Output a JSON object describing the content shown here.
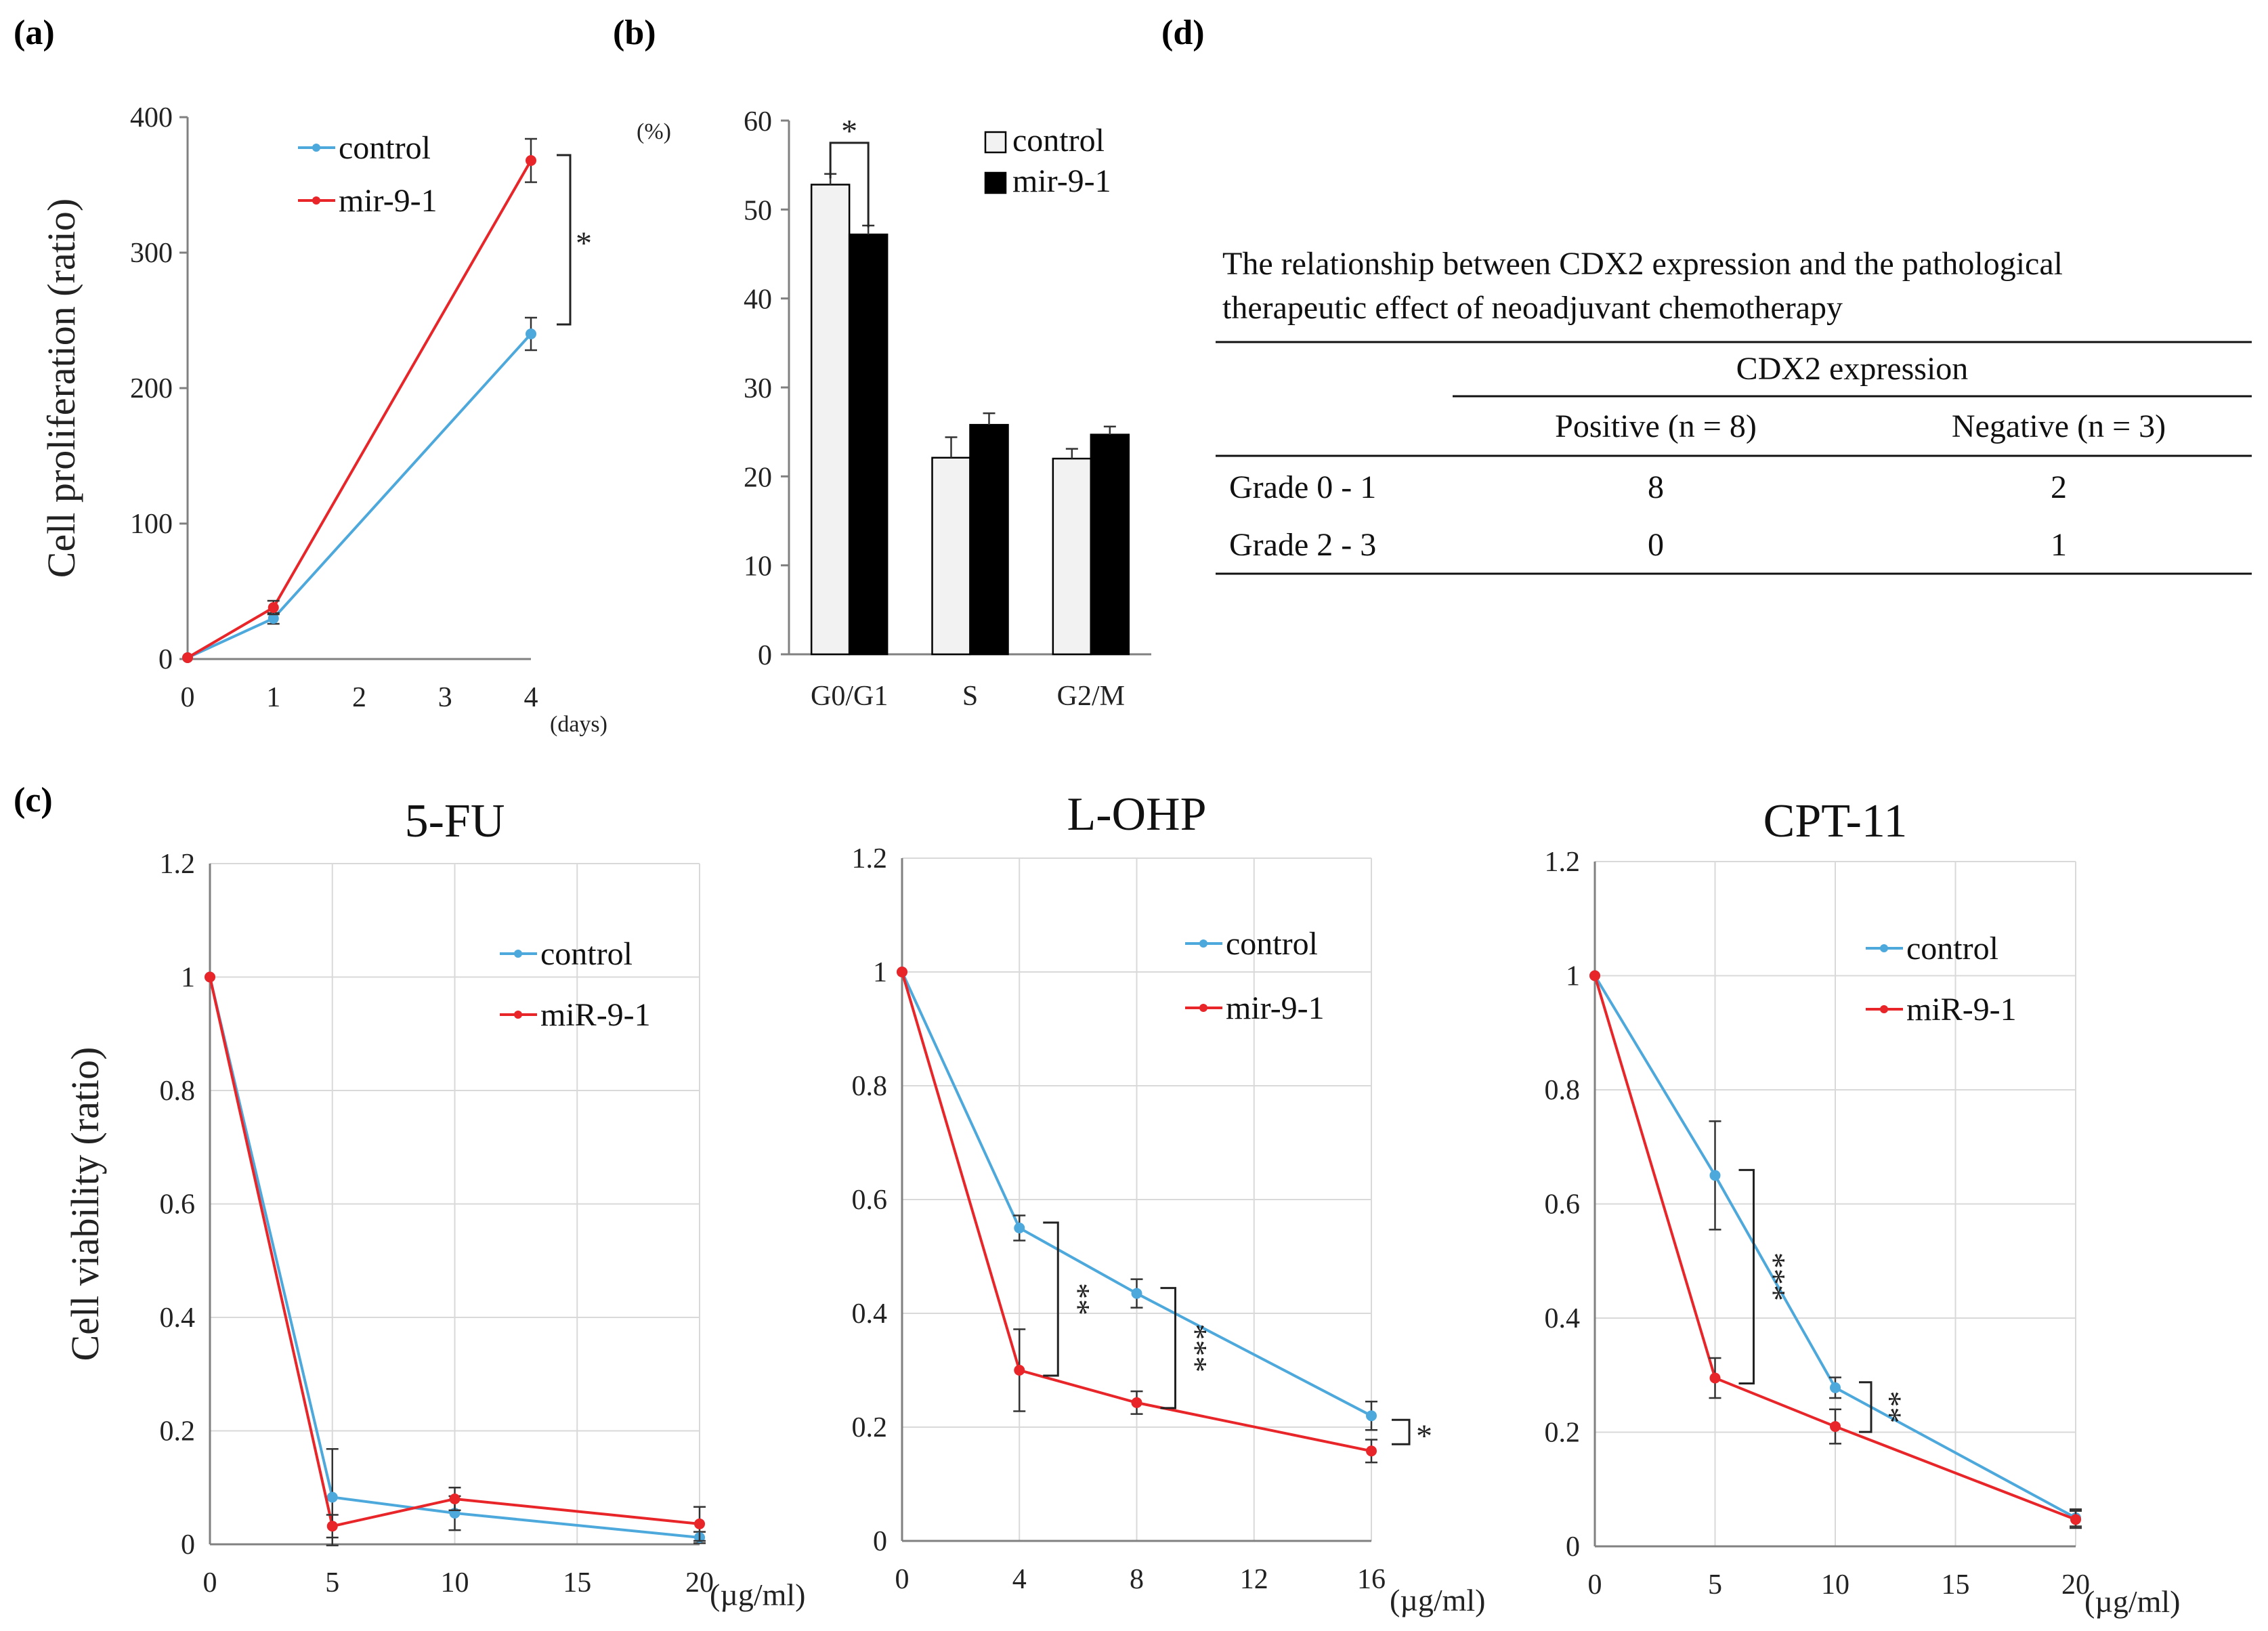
{
  "panel_labels": {
    "a": "(a)",
    "b": "(b)",
    "c": "(c)",
    "d": "(d)"
  },
  "colors": {
    "control": "#4da8dc",
    "mir": "#e8262a",
    "mir_5fu": "#f07a3a",
    "axis": "#808080",
    "grid": "#d9d9d9"
  },
  "chart_data": [
    {
      "id": "a",
      "type": "line",
      "title": "",
      "xlabel": "",
      "x_unit": "(days)",
      "ylabel": "Cell proliferation (ratio)",
      "xlim": [
        0,
        4
      ],
      "ylim": [
        0,
        400
      ],
      "x_ticks": [
        "0",
        "1",
        "2",
        "3",
        "4"
      ],
      "y_ticks": [
        "0",
        "100",
        "200",
        "300",
        "400"
      ],
      "grid": false,
      "legend_position": "top-center",
      "series": [
        {
          "name": "control",
          "x": [
            0,
            1,
            4
          ],
          "values": [
            1,
            30,
            240
          ],
          "errors": [
            0,
            4,
            12
          ]
        },
        {
          "name": "mir-9-1",
          "x": [
            0,
            1,
            4
          ],
          "values": [
            1,
            38,
            368
          ],
          "errors": [
            0,
            5,
            16
          ]
        }
      ],
      "annotations": [
        {
          "text": "*",
          "x": 4,
          "between": [
            240,
            368
          ]
        }
      ]
    },
    {
      "id": "b",
      "type": "bar",
      "title": "",
      "y_unit": "(%)",
      "ylim": [
        0,
        60
      ],
      "categories": [
        "G0/G1",
        "S",
        "G2/M"
      ],
      "y_ticks": [
        "0",
        "10",
        "20",
        "30",
        "40",
        "50",
        "60"
      ],
      "grid": false,
      "legend_position": "top-right",
      "series": [
        {
          "name": "control",
          "values": [
            52.8,
            22.1,
            22.0
          ],
          "errors": [
            1.2,
            2.3,
            1.1
          ]
        },
        {
          "name": "mir-9-1",
          "values": [
            47.2,
            25.8,
            24.7
          ],
          "errors": [
            1.0,
            1.3,
            0.9
          ]
        }
      ],
      "annotations": [
        {
          "text": "*",
          "category": "G0/G1"
        }
      ]
    },
    {
      "id": "c1",
      "type": "line",
      "title": "5-FU",
      "ylabel": "Cell viability (ratio)",
      "x_unit": "(µg/ml)",
      "xlim": [
        0,
        20
      ],
      "ylim": [
        0,
        1.2
      ],
      "x_ticks": [
        "0",
        "5",
        "10",
        "15",
        "20"
      ],
      "y_ticks": [
        "0",
        "0.2",
        "0.4",
        "0.6",
        "0.8",
        "1",
        "1.2"
      ],
      "grid": true,
      "legend_position": "top-right",
      "series": [
        {
          "name": "control",
          "x": [
            0,
            5,
            10,
            20
          ],
          "values": [
            1,
            0.083,
            0.055,
            0.012
          ],
          "errors": [
            0,
            0.085,
            0.03,
            0.01
          ]
        },
        {
          "name": "miR-9-1",
          "x": [
            0,
            5,
            10,
            20
          ],
          "values": [
            1,
            0.032,
            0.08,
            0.036
          ],
          "errors": [
            0,
            0.02,
            0.02,
            0.03
          ]
        }
      ],
      "annotations": []
    },
    {
      "id": "c2",
      "type": "line",
      "title": "L-OHP",
      "x_unit": "(µg/ml)",
      "xlim": [
        0,
        16
      ],
      "ylim": [
        0,
        1.2
      ],
      "x_ticks": [
        "0",
        "4",
        "8",
        "12",
        "16"
      ],
      "y_ticks": [
        "0",
        "0.2",
        "0.4",
        "0.6",
        "0.8",
        "1",
        "1.2"
      ],
      "grid": true,
      "legend_position": "top-right",
      "series": [
        {
          "name": "control",
          "x": [
            0,
            4,
            8,
            16
          ],
          "values": [
            1,
            0.55,
            0.435,
            0.22
          ],
          "errors": [
            0,
            0.022,
            0.025,
            0.025
          ]
        },
        {
          "name": "mir-9-1",
          "x": [
            0,
            4,
            8,
            16
          ],
          "values": [
            1,
            0.3,
            0.243,
            0.158
          ],
          "errors": [
            0,
            0.072,
            0.02,
            0.02
          ]
        }
      ],
      "annotations": [
        {
          "text": "**",
          "x": 4
        },
        {
          "text": "***",
          "x": 8
        },
        {
          "text": "*",
          "x": 16
        }
      ]
    },
    {
      "id": "c3",
      "type": "line",
      "title": "CPT-11",
      "x_unit": "(µg/ml)",
      "xlim": [
        0,
        20
      ],
      "ylim": [
        0,
        1.2
      ],
      "x_ticks": [
        "0",
        "5",
        "10",
        "15",
        "20"
      ],
      "y_ticks": [
        "0",
        "0.2",
        "0.4",
        "0.6",
        "0.8",
        "1",
        "1.2"
      ],
      "grid": true,
      "legend_position": "top-right",
      "series": [
        {
          "name": "control",
          "x": [
            0,
            5,
            10,
            20
          ],
          "values": [
            1,
            0.65,
            0.278,
            0.05
          ],
          "errors": [
            0,
            0.095,
            0.018,
            0.015
          ]
        },
        {
          "name": "miR-9-1",
          "x": [
            0,
            5,
            10,
            20
          ],
          "values": [
            1,
            0.295,
            0.21,
            0.047
          ],
          "errors": [
            0,
            0.035,
            0.03,
            0.015
          ]
        }
      ],
      "annotations": [
        {
          "text": "***",
          "x": 5
        },
        {
          "text": "**",
          "x": 10
        }
      ]
    }
  ],
  "table": {
    "caption_line1": "The relationship between   CDX2 expression and the pathological",
    "caption_line2": "therapeutic effect of neoadjuvant chemotherapy",
    "group_header": "CDX2 expression",
    "col_headers": [
      "Positive (n = 8)",
      "Negative (n = 3)"
    ],
    "rows": [
      {
        "label": "Grade 0 - 1",
        "values": [
          "8",
          "2"
        ]
      },
      {
        "label": "Grade 2 - 3",
        "values": [
          "0",
          "1"
        ]
      }
    ]
  }
}
